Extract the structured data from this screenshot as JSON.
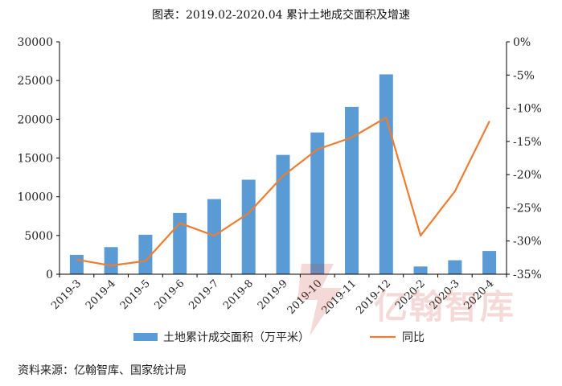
{
  "title": "图表：2019.02-2020.04 累计土地成交面积及增速",
  "source": "资料来源：亿翰智库、国家统计局",
  "watermark": "亿翰智库",
  "colors": {
    "bar": "#5B9BD5",
    "line": "#ED7D31",
    "axis": "#000000"
  },
  "chart_data": {
    "type": "bar",
    "categories": [
      "2019-3",
      "2019-4",
      "2019-5",
      "2019-6",
      "2019-7",
      "2019-8",
      "2019-9",
      "2019-10",
      "2019-11",
      "2019-12",
      "2020-2",
      "2020-3",
      "2020-4"
    ],
    "series": [
      {
        "name": "土地累计成交面积（万平米）",
        "type": "bar",
        "axis": "left",
        "values": [
          2500,
          3500,
          5100,
          7900,
          9700,
          12200,
          15400,
          18300,
          21600,
          25800,
          1000,
          1800,
          3000
        ]
      },
      {
        "name": "同比",
        "type": "line",
        "axis": "right",
        "values": [
          -32.8,
          -33.7,
          -33.0,
          -27.3,
          -29.2,
          -25.8,
          -20.2,
          -16.2,
          -14.4,
          -11.4,
          -29.2,
          -22.5,
          -12.0
        ]
      }
    ],
    "y_left": {
      "ylim": [
        0,
        30000
      ],
      "ticks": [
        "0",
        "5000",
        "10000",
        "15000",
        "20000",
        "25000",
        "30000"
      ]
    },
    "y_right": {
      "ylim": [
        -35,
        0
      ],
      "ticks": [
        "0%",
        "-5%",
        "-10%",
        "-15%",
        "-20%",
        "-25%",
        "-30%",
        "-35%"
      ]
    },
    "legend": {
      "placement": "bottom"
    },
    "grid": false
  }
}
